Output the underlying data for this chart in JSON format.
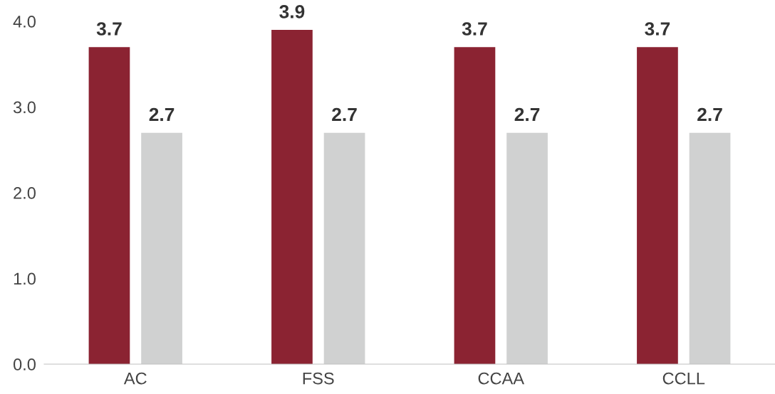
{
  "chart_data": {
    "type": "bar",
    "categories": [
      "AC",
      "FSS",
      "CCAA",
      "CCLL"
    ],
    "series": [
      {
        "color": "#8b2332",
        "values": [
          3.7,
          3.9,
          3.7,
          3.7
        ]
      },
      {
        "color": "#d0d1d1",
        "values": [
          2.7,
          2.7,
          2.7,
          2.7
        ]
      }
    ],
    "ylim": [
      0,
      4
    ],
    "yticks": [
      {
        "value": 0,
        "label": "0.0"
      },
      {
        "value": 1,
        "label": "1.0"
      },
      {
        "value": 2,
        "label": "2.0"
      },
      {
        "value": 3,
        "label": "3.0"
      },
      {
        "value": 4,
        "label": "4.0"
      }
    ],
    "data_labels": true
  }
}
